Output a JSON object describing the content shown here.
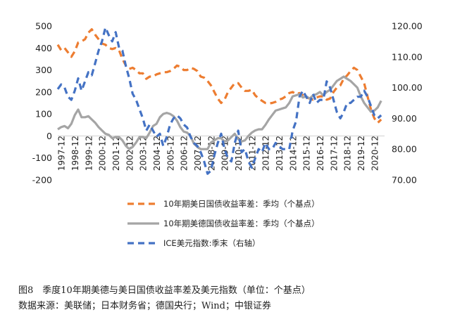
{
  "chart_data": {
    "type": "line",
    "title": "",
    "x_categories": [
      "1997-12",
      "1998-12",
      "1999-12",
      "2000-12",
      "2001-12",
      "2002-12",
      "2003-12",
      "2004-12",
      "2005-12",
      "2006-12",
      "2007-12",
      "2008-12",
      "2009-12",
      "2010-12",
      "2011-12",
      "2012-12",
      "2013-12",
      "2014-12",
      "2015-12",
      "2016-12",
      "2017-12",
      "2018-12",
      "2019-12",
      "2020-12"
    ],
    "y_left": {
      "min": -200,
      "max": 500,
      "ticks": [
        "500",
        "400",
        "300",
        "200",
        "100",
        "0",
        "-100",
        "-200"
      ]
    },
    "y_right": {
      "min": 70,
      "max": 120,
      "ticks": [
        "120.00",
        "110.00",
        "100.00",
        "90.00",
        "80.00",
        "70.00"
      ]
    },
    "series": [
      {
        "name": "10年期美日国债收益率差：季均（个基点）",
        "axis": "left",
        "color": "#ED7D31",
        "dash": "dash",
        "x": [
          1997.0,
          1997.25,
          1997.5,
          1997.75,
          1998.0,
          1998.25,
          1998.5,
          1998.75,
          1999.0,
          1999.25,
          1999.5,
          1999.75,
          2000.0,
          2000.25,
          2000.5,
          2000.75,
          2001.0,
          2001.25,
          2001.5,
          2001.75,
          2002.0,
          2002.25,
          2002.5,
          2002.75,
          2003.0,
          2003.25,
          2003.5,
          2003.75,
          2004.0,
          2004.25,
          2004.5,
          2004.75,
          2005.0,
          2005.25,
          2005.5,
          2005.75,
          2006.0,
          2006.25,
          2006.5,
          2006.75,
          2007.0,
          2007.25,
          2007.5,
          2007.75,
          2008.0,
          2008.25,
          2008.5,
          2008.75,
          2009.0,
          2009.25,
          2009.5,
          2009.75,
          2010.0,
          2010.25,
          2010.5,
          2010.75,
          2011.0,
          2011.25,
          2011.5,
          2011.75,
          2012.0,
          2012.25,
          2012.5,
          2012.75,
          2013.0,
          2013.25,
          2013.5,
          2013.75,
          2014.0,
          2014.25,
          2014.5,
          2014.75,
          2015.0,
          2015.25,
          2015.5,
          2015.75,
          2016.0,
          2016.25,
          2016.5,
          2016.75,
          2017.0,
          2017.25,
          2017.5,
          2017.75,
          2018.0,
          2018.25,
          2018.5,
          2018.75,
          2019.0,
          2019.25,
          2019.5,
          2019.75,
          2020.0,
          2020.25,
          2020.5,
          2020.75
        ],
        "values": [
          415,
          390,
          400,
          380,
          360,
          385,
          425,
          430,
          440,
          470,
          485,
          460,
          440,
          420,
          415,
          400,
          395,
          400,
          390,
          350,
          320,
          305,
          310,
          300,
          285,
          285,
          260,
          270,
          270,
          280,
          285,
          290,
          290,
          295,
          305,
          320,
          315,
          300,
          300,
          310,
          305,
          295,
          270,
          265,
          250,
          230,
          200,
          170,
          150,
          165,
          200,
          220,
          240,
          240,
          220,
          205,
          205,
          210,
          185,
          170,
          160,
          150,
          148,
          150,
          155,
          165,
          170,
          180,
          195,
          200,
          190,
          195,
          185,
          175,
          170,
          165,
          175,
          180,
          180,
          165,
          170,
          200,
          220,
          230,
          260,
          275,
          295,
          310,
          300,
          270,
          240,
          180,
          120,
          80,
          60,
          75
        ]
      },
      {
        "name": "10年期美德国债收益率差：季均（个基点）",
        "axis": "left",
        "color": "#A5A5A5",
        "dash": "solid",
        "x": [
          1997.0,
          1997.25,
          1997.5,
          1997.75,
          1998.0,
          1998.25,
          1998.5,
          1998.75,
          1999.0,
          1999.25,
          1999.5,
          1999.75,
          2000.0,
          2000.25,
          2000.5,
          2000.75,
          2001.0,
          2001.25,
          2001.5,
          2001.75,
          2002.0,
          2002.25,
          2002.5,
          2002.75,
          2003.0,
          2003.25,
          2003.5,
          2003.75,
          2004.0,
          2004.25,
          2004.5,
          2004.75,
          2005.0,
          2005.25,
          2005.5,
          2005.75,
          2006.0,
          2006.25,
          2006.5,
          2006.75,
          2007.0,
          2007.25,
          2007.5,
          2007.75,
          2008.0,
          2008.25,
          2008.5,
          2008.75,
          2009.0,
          2009.25,
          2009.5,
          2009.75,
          2010.0,
          2010.25,
          2010.5,
          2010.75,
          2011.0,
          2011.25,
          2011.5,
          2011.75,
          2012.0,
          2012.25,
          2012.5,
          2012.75,
          2013.0,
          2013.25,
          2013.5,
          2013.75,
          2014.0,
          2014.25,
          2014.5,
          2014.75,
          2015.0,
          2015.25,
          2015.5,
          2015.75,
          2016.0,
          2016.25,
          2016.5,
          2016.75,
          2017.0,
          2017.25,
          2017.5,
          2017.75,
          2018.0,
          2018.25,
          2018.5,
          2018.75,
          2019.0,
          2019.25,
          2019.5,
          2019.75,
          2020.0,
          2020.25,
          2020.5,
          2020.75
        ],
        "values": [
          30,
          40,
          45,
          35,
          55,
          95,
          120,
          85,
          85,
          90,
          75,
          60,
          40,
          25,
          10,
          5,
          -10,
          -5,
          -5,
          -20,
          -45,
          -60,
          -50,
          -30,
          -5,
          -5,
          -10,
          15,
          45,
          55,
          85,
          100,
          105,
          100,
          90,
          70,
          40,
          20,
          15,
          0,
          -35,
          -50,
          -60,
          -60,
          -60,
          -30,
          -20,
          -10,
          -10,
          -25,
          -20,
          -5,
          10,
          -15,
          -25,
          -20,
          0,
          15,
          25,
          30,
          30,
          50,
          75,
          95,
          115,
          120,
          125,
          130,
          150,
          180,
          185,
          190,
          175,
          180,
          170,
          185,
          190,
          200,
          185,
          200,
          210,
          230,
          250,
          260,
          270,
          260,
          250,
          235,
          220,
          180,
          150,
          130,
          110,
          115,
          130,
          160
        ]
      },
      {
        "name": "ICE美元指数:季末（右轴）",
        "axis": "right",
        "color": "#4472C4",
        "dash": "dash",
        "x": [
          1997.0,
          1997.25,
          1997.5,
          1997.75,
          1998.0,
          1998.25,
          1998.5,
          1998.75,
          1999.0,
          1999.25,
          1999.5,
          1999.75,
          2000.0,
          2000.25,
          2000.5,
          2000.75,
          2001.0,
          2001.25,
          2001.5,
          2001.75,
          2002.0,
          2002.25,
          2002.5,
          2002.75,
          2003.0,
          2003.25,
          2003.5,
          2003.75,
          2004.0,
          2004.25,
          2004.5,
          2004.75,
          2005.0,
          2005.25,
          2005.5,
          2005.75,
          2006.0,
          2006.25,
          2006.5,
          2006.75,
          2007.0,
          2007.25,
          2007.5,
          2007.75,
          2008.0,
          2008.25,
          2008.5,
          2008.75,
          2009.0,
          2009.25,
          2009.5,
          2009.75,
          2010.0,
          2010.25,
          2010.5,
          2010.75,
          2011.0,
          2011.25,
          2011.5,
          2011.75,
          2012.0,
          2012.25,
          2012.5,
          2012.75,
          2013.0,
          2013.25,
          2013.5,
          2013.75,
          2014.0,
          2014.25,
          2014.5,
          2014.75,
          2015.0,
          2015.25,
          2015.5,
          2015.75,
          2016.0,
          2016.25,
          2016.5,
          2016.75,
          2017.0,
          2017.25,
          2017.5,
          2017.75,
          2018.0,
          2018.25,
          2018.5,
          2018.75,
          2019.0,
          2019.25,
          2019.5,
          2019.75,
          2020.0,
          2020.25,
          2020.5,
          2020.75
        ],
        "values": [
          99.5,
          101.0,
          100.0,
          97.0,
          96.0,
          99.0,
          103.0,
          99.0,
          102.0,
          105.0,
          104.0,
          108.0,
          112.0,
          115.0,
          119.5,
          117.0,
          115.0,
          118.0,
          113.0,
          112.0,
          107.0,
          103.0,
          98.0,
          96.0,
          93.0,
          90.0,
          86.0,
          88.0,
          86.0,
          84.0,
          85.0,
          81.0,
          84.0,
          88.0,
          90.0,
          91.0,
          90.0,
          88.0,
          87.0,
          84.0,
          82.0,
          81.0,
          79.0,
          76.0,
          72.0,
          73.0,
          78.0,
          82.0,
          85.0,
          80.0,
          77.0,
          76.0,
          82.0,
          86.0,
          79.0,
          80.0,
          76.0,
          74.0,
          77.0,
          80.0,
          79.0,
          82.0,
          80.0,
          80.0,
          82.0,
          81.0,
          80.0,
          80.0,
          80.0,
          86.0,
          89.0,
          97.0,
          99.0,
          97.0,
          95.0,
          98.0,
          95.0,
          96.0,
          96.0,
          102.0,
          100.0,
          96.0,
          92.0,
          90.0,
          92.0,
          95.0,
          95.0,
          96.0,
          97.0,
          97.0,
          99.0,
          97.0,
          94.0,
          91.0,
          90.0,
          91.0
        ]
      }
    ],
    "legend_placement": "bottom",
    "grid": false
  },
  "caption": {
    "title": "图8　季度10年期美德与美日国债收益率差及美元指数（单位：个基点）",
    "source": "数据来源：美联储；日本财务省；德国央行；Wind；中银证券"
  }
}
